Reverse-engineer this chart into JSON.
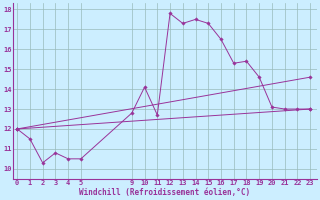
{
  "xlabel": "Windchill (Refroidissement éolien,°C)",
  "bg_color": "#cceeff",
  "line_color": "#993399",
  "grid_color": "#99bbbb",
  "ylim": [
    9.5,
    18.3
  ],
  "yticks": [
    10,
    11,
    12,
    13,
    14,
    15,
    16,
    17,
    18
  ],
  "xlim": [
    -0.3,
    23.5
  ],
  "xticks": [
    0,
    1,
    2,
    3,
    4,
    5,
    9,
    10,
    11,
    12,
    13,
    14,
    15,
    16,
    17,
    18,
    19,
    20,
    21,
    22,
    23
  ],
  "line1_x": [
    0,
    1,
    2,
    3,
    4,
    5,
    9,
    10,
    11,
    12,
    13,
    14,
    15,
    16,
    17,
    18,
    19,
    20,
    21,
    22,
    23
  ],
  "line1_y": [
    12.0,
    11.5,
    10.3,
    10.8,
    10.5,
    10.5,
    12.8,
    14.1,
    12.7,
    17.8,
    17.3,
    17.5,
    17.3,
    16.5,
    15.3,
    15.4,
    14.6,
    13.1,
    13.0,
    13.0,
    13.0
  ],
  "line2_x": [
    0,
    23
  ],
  "line2_y": [
    12.0,
    13.0
  ],
  "line3_x": [
    0,
    23
  ],
  "line3_y": [
    12.0,
    14.6
  ],
  "tick_fontsize": 5,
  "label_fontsize": 5.5
}
